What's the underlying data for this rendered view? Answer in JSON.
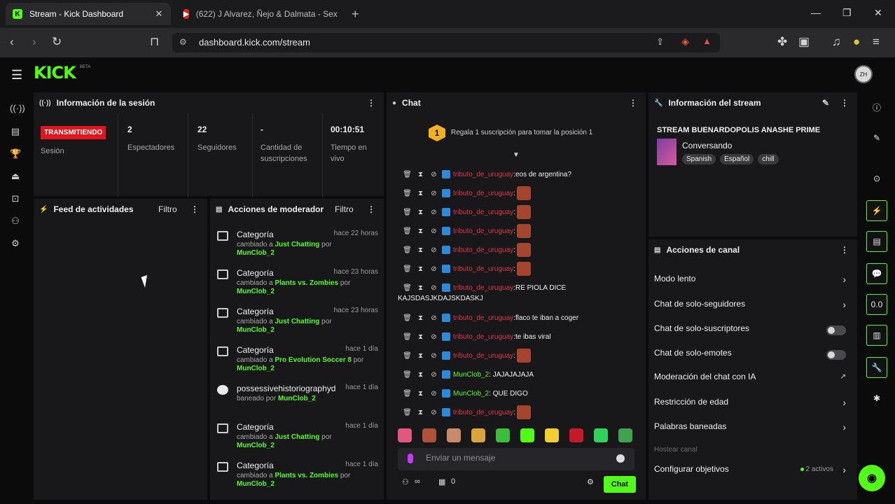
{
  "browser": {
    "tabs": [
      {
        "title": "Stream - Kick Dashboard",
        "active": true
      },
      {
        "title": "(622) J Alvarez, Ñejo & Dalmata - Sex",
        "active": false
      }
    ],
    "url": "dashboard.kick.com/stream"
  },
  "app": {
    "logo": "KICK",
    "logo_sup": "BETA",
    "avatar_text": "ZH"
  },
  "session": {
    "title": "Información de la sesión",
    "live_badge": "TRANSMITIENDO",
    "session_label": "Sesión",
    "stats": [
      {
        "value": "2",
        "label": "Espectadores"
      },
      {
        "value": "22",
        "label": "Seguidores"
      },
      {
        "value": "-",
        "label": "Cantidad de suscripciones"
      },
      {
        "value": "00:10:51",
        "label": "Tiempo en vivo"
      }
    ]
  },
  "feed": {
    "title": "Feed de actividades",
    "filter": "Filtro"
  },
  "mod_actions": {
    "title": "Acciones de moderador",
    "filter": "Filtro",
    "items": [
      {
        "title": "Categoría",
        "time": "hace 22 horas",
        "prefix": "cambiado a",
        "target": "Just Chatting",
        "suffix": "por",
        "user": "MunClob_2",
        "type": "category"
      },
      {
        "title": "Categoría",
        "time": "hace 23 horas",
        "prefix": "cambiado a",
        "target": "Plants vs. Zombies",
        "suffix": "por",
        "user": "MunClob_2",
        "type": "category"
      },
      {
        "title": "Categoría",
        "time": "hace 23 horas",
        "prefix": "cambiado a",
        "target": "Just Chatting",
        "suffix": "por",
        "user": "MunClob_2",
        "type": "category"
      },
      {
        "title": "Categoría",
        "time": "hace 1 día",
        "prefix": "cambiado a",
        "target": "Pro Evolution Soccer 8",
        "suffix": "por",
        "user": "MunClob_2",
        "type": "category"
      },
      {
        "title": "possessivehistoriographyd",
        "time": "hace 1 día",
        "prefix": "baneado por",
        "target": "MunClob_2",
        "suffix": "",
        "user": "",
        "type": "ban"
      },
      {
        "title": "Categoría",
        "time": "hace 1 día",
        "prefix": "cambiado a",
        "target": "Just Chatting",
        "suffix": "por",
        "user": "MunClob_2",
        "type": "category"
      },
      {
        "title": "Categoría",
        "time": "hace 1 día",
        "prefix": "cambiado a",
        "target": "Plants vs. Zombies",
        "suffix": "por",
        "user": "MunClob_2",
        "type": "category"
      }
    ]
  },
  "chat": {
    "title": "Chat",
    "goal_number": "1",
    "goal_text": "Regala 1 suscripción para tomar la posición 1",
    "messages": [
      {
        "user": "tributo_de_uruguay",
        "text": ":eos de argentina?",
        "emote": false,
        "green": false
      },
      {
        "user": "tributo_de_uruguay",
        "text": ":",
        "emote": true,
        "green": false
      },
      {
        "user": "tributo_de_uruguay",
        "text": ":",
        "emote": true,
        "green": false
      },
      {
        "user": "tributo_de_uruguay",
        "text": ":",
        "emote": true,
        "green": false
      },
      {
        "user": "tributo_de_uruguay",
        "text": ":",
        "emote": true,
        "green": false
      },
      {
        "user": "tributo_de_uruguay",
        "text": ":",
        "emote": true,
        "green": false
      },
      {
        "user": "tributo_de_uruguay",
        "text": ":RE PIOLA DICE",
        "emote": false,
        "green": false
      },
      {
        "user": "tributo_de_uruguay",
        "text": ":flaco te iban a coger",
        "emote": false,
        "green": false
      },
      {
        "user": "tributo_de_uruguay",
        "text": ":te ibas viral",
        "emote": false,
        "green": false
      },
      {
        "user": "tributo_de_uruguay",
        "text": ":",
        "emote": true,
        "green": false
      },
      {
        "user": "MunClob_2",
        "text": ": JAJAJAJAJA",
        "emote": false,
        "green": true
      },
      {
        "user": "MunClob_2",
        "text": ": QUE DIGO",
        "emote": false,
        "green": true
      },
      {
        "user": "tributo_de_uruguay",
        "text": ":",
        "emote": true,
        "green": false
      }
    ],
    "continuation": "KAJSDASJKDAJSKDASKJ",
    "input_placeholder": "Enviar un mensaje",
    "footer_left": "∞",
    "footer_count": "0",
    "send_label": "Chat"
  },
  "stream_info": {
    "title": "Información del stream",
    "stream_title": "STREAM BUENARDOPOLIS ANASHE PRIME",
    "category": "Conversando",
    "tags": [
      "Spanish",
      "Español",
      "chill"
    ]
  },
  "channel_actions": {
    "title": "Acciones de canal",
    "rows": [
      {
        "label": "Modo lento",
        "control": "chevron"
      },
      {
        "label": "Chat de solo-seguidores",
        "control": "chevron"
      },
      {
        "label": "Chat de solo-suscriptores",
        "control": "toggle"
      },
      {
        "label": "Chat de solo-emotes",
        "control": "toggle"
      },
      {
        "label": "Moderación del chat con IA",
        "control": "external"
      },
      {
        "label": "Restricción de edad",
        "control": "chevron"
      },
      {
        "label": "Palabras baneadas",
        "control": "chevron"
      },
      {
        "label": "Hostear canal",
        "control": "disabled"
      },
      {
        "label": "Configurar objetivos",
        "control": "chevron",
        "extra": "2 activos"
      }
    ]
  },
  "colors": {
    "accent": "#53fc18",
    "live": "#e3141b",
    "username": "#e0354b",
    "background": "#0b0b0c",
    "panel": "#18181a"
  }
}
